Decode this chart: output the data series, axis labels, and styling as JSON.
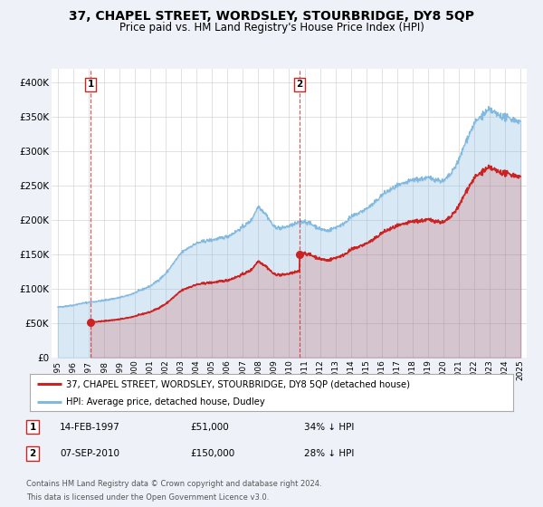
{
  "title": "37, CHAPEL STREET, WORDSLEY, STOURBRIDGE, DY8 5QP",
  "subtitle": "Price paid vs. HM Land Registry's House Price Index (HPI)",
  "bg_color": "#eef2f8",
  "plot_bg_color": "#ffffff",
  "red_color": "#cc2222",
  "blue_color": "#80b8e0",
  "grid_color": "#cccccc",
  "annotation1": {
    "label": "1",
    "date_num": 1997.12,
    "price": 51000,
    "date_str": "14-FEB-1997",
    "price_str": "£51,000",
    "hpi_str": "34% ↓ HPI"
  },
  "annotation2": {
    "label": "2",
    "date_num": 2010.68,
    "price": 150000,
    "date_str": "07-SEP-2010",
    "price_str": "£150,000",
    "hpi_str": "28% ↓ HPI"
  },
  "legend_red": "37, CHAPEL STREET, WORDSLEY, STOURBRIDGE, DY8 5QP (detached house)",
  "legend_blue": "HPI: Average price, detached house, Dudley",
  "footer1": "Contains HM Land Registry data © Crown copyright and database right 2024.",
  "footer2": "This data is licensed under the Open Government Licence v3.0.",
  "ylim": [
    0,
    420000
  ],
  "yticks": [
    0,
    50000,
    100000,
    150000,
    200000,
    250000,
    300000,
    350000,
    400000
  ],
  "ytick_labels": [
    "£0",
    "£50K",
    "£100K",
    "£150K",
    "£200K",
    "£250K",
    "£300K",
    "£350K",
    "£400K"
  ],
  "xlim": [
    1994.6,
    2025.4
  ],
  "xticks": [
    1995,
    1996,
    1997,
    1998,
    1999,
    2000,
    2001,
    2002,
    2003,
    2004,
    2005,
    2006,
    2007,
    2008,
    2009,
    2010,
    2011,
    2012,
    2013,
    2014,
    2015,
    2016,
    2017,
    2018,
    2019,
    2020,
    2021,
    2022,
    2023,
    2024,
    2025
  ]
}
